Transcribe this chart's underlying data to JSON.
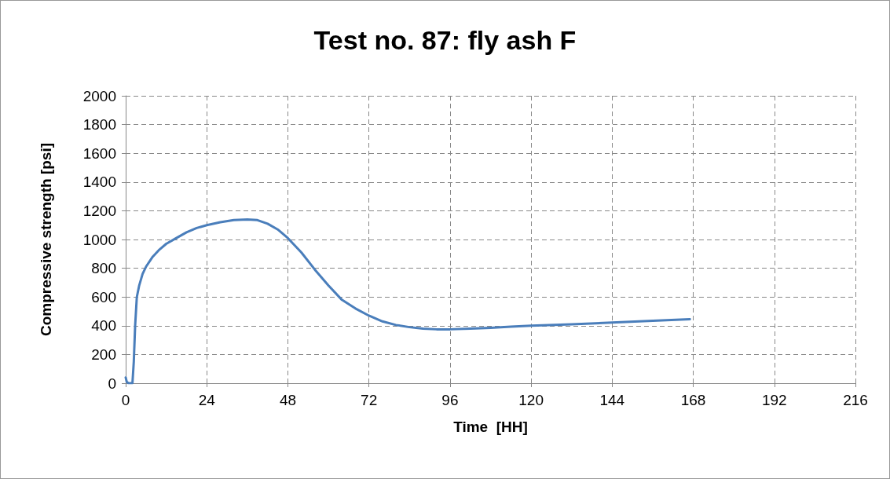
{
  "chart_data": {
    "type": "line",
    "title": "Test no. 87: fly ash F",
    "xlabel": "Time  [HH]",
    "ylabel": "Compressive strength [psi]",
    "series": [
      {
        "color": "#4a7ebb",
        "x": [
          0,
          0.3,
          0.8,
          1.5,
          2,
          2.4,
          2.8,
          3.3,
          4,
          5,
          6,
          8,
          10,
          12,
          15,
          18,
          21,
          24,
          28,
          32,
          36,
          39,
          42,
          45,
          48,
          52,
          56,
          60,
          64,
          68,
          72,
          76,
          80,
          84,
          88,
          92,
          96,
          102,
          108,
          114,
          120,
          132,
          144,
          156,
          167
        ],
        "values": [
          40,
          10,
          0,
          0,
          0,
          150,
          400,
          600,
          680,
          760,
          810,
          880,
          930,
          970,
          1010,
          1050,
          1080,
          1100,
          1120,
          1135,
          1140,
          1135,
          1110,
          1070,
          1010,
          910,
          790,
          680,
          580,
          520,
          470,
          430,
          405,
          390,
          380,
          375,
          375,
          380,
          385,
          393,
          400,
          410,
          422,
          435,
          445
        ]
      }
    ],
    "xlim": [
      0,
      216
    ],
    "xticks": [
      0,
      24,
      48,
      72,
      96,
      120,
      144,
      168,
      192,
      216
    ],
    "ylim": [
      0,
      2000
    ],
    "yticks": [
      0,
      200,
      400,
      600,
      800,
      1000,
      1200,
      1400,
      1600,
      1800,
      2000
    ],
    "grid": true,
    "marker": "none",
    "line_style": "solid"
  }
}
